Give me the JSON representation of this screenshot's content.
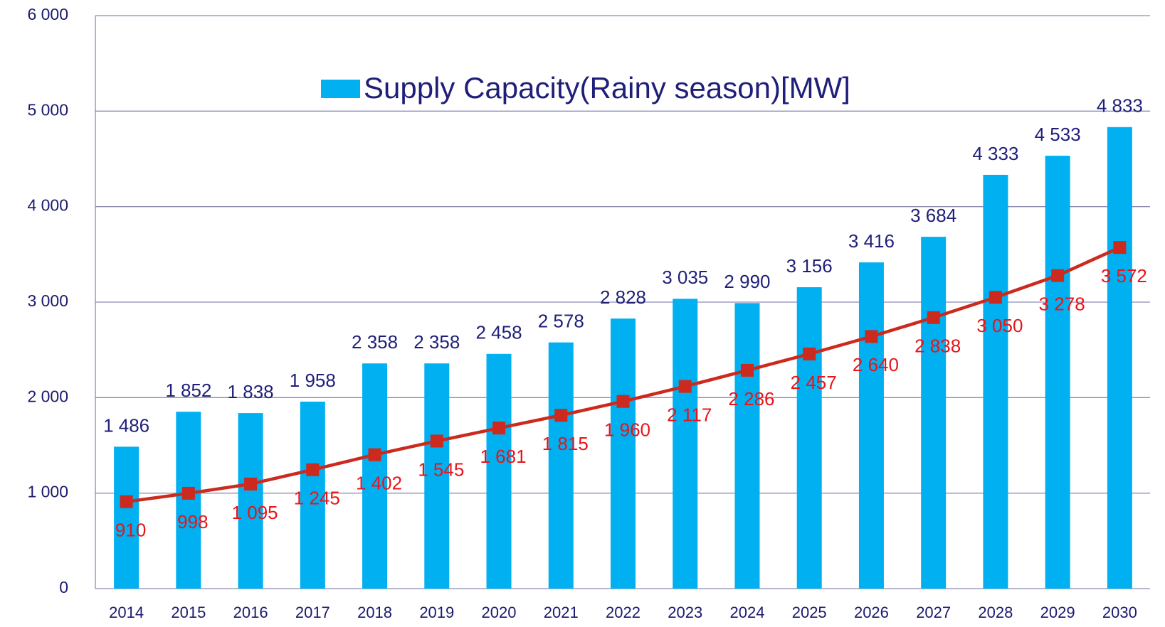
{
  "chart_data": {
    "type": "bar",
    "categories": [
      "2014",
      "2015",
      "2016",
      "2017",
      "2018",
      "2019",
      "2020",
      "2021",
      "2022",
      "2023",
      "2024",
      "2025",
      "2026",
      "2027",
      "2028",
      "2029",
      "2030"
    ],
    "series": [
      {
        "name": "Supply Capacity(Rainy season)[MW]",
        "type": "bar",
        "color": "#00b0f0",
        "values": [
          1486,
          1852,
          1838,
          1958,
          2358,
          2358,
          2458,
          2578,
          2828,
          3035,
          2990,
          3156,
          3416,
          3684,
          4333,
          4533,
          4833
        ],
        "value_labels": [
          "1 486",
          "1 852",
          "1 838",
          "1 958",
          "2 358",
          "2 358",
          "2 458",
          "2 578",
          "2 828",
          "3 035",
          "2 990",
          "3 156",
          "3 416",
          "3 684",
          "4 333",
          "4 533",
          "4 833"
        ]
      },
      {
        "type": "line",
        "color": "#cc2a1e",
        "values": [
          910,
          998,
          1095,
          1245,
          1402,
          1545,
          1681,
          1815,
          1960,
          2117,
          2286,
          2457,
          2640,
          2838,
          3050,
          3278,
          3572
        ],
        "value_labels": [
          "910",
          "998",
          "1 095",
          "1 245",
          "1 402",
          "1 545",
          "1 681",
          "1 815",
          "1 960",
          "2 117",
          "2 286",
          "2 457",
          "2 640",
          "2 838",
          "3 050",
          "3 278",
          "3 572"
        ]
      }
    ],
    "ylim": [
      0,
      6000
    ],
    "yticks": [
      {
        "value": 0,
        "label": "0"
      },
      {
        "value": 1000,
        "label": "1 000"
      },
      {
        "value": 2000,
        "label": "2 000"
      },
      {
        "value": 3000,
        "label": "3 000"
      },
      {
        "value": 4000,
        "label": "4 000"
      },
      {
        "value": 5000,
        "label": "5 000"
      },
      {
        "value": 6000,
        "label": "6 000"
      }
    ],
    "grid": true,
    "legend": "top"
  }
}
